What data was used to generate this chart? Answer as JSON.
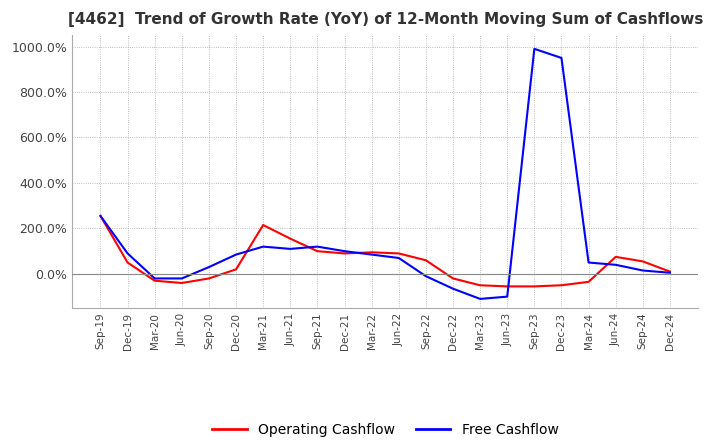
{
  "title": "[4462]  Trend of Growth Rate (YoY) of 12-Month Moving Sum of Cashflows",
  "title_fontsize": 11,
  "title_color": "#333333",
  "ylim_low": -150,
  "ylim_high": 1050,
  "yticks": [
    0,
    200,
    400,
    600,
    800,
    1000
  ],
  "ytick_labels": [
    "0.0%",
    "200.0%",
    "400.0%",
    "600.0%",
    "800.0%",
    "1000.0%"
  ],
  "background_color": "#ffffff",
  "grid_color": "#aaaaaa",
  "legend_labels": [
    "Operating Cashflow",
    "Free Cashflow"
  ],
  "op_color": "#ff0000",
  "free_color": "#0000ff",
  "x_labels": [
    "Sep-19",
    "Dec-19",
    "Mar-20",
    "Jun-20",
    "Sep-20",
    "Dec-20",
    "Mar-21",
    "Jun-21",
    "Sep-21",
    "Dec-21",
    "Mar-22",
    "Jun-22",
    "Sep-22",
    "Dec-22",
    "Mar-23",
    "Jun-23",
    "Sep-23",
    "Dec-23",
    "Mar-24",
    "Jun-24",
    "Sep-24",
    "Dec-24"
  ],
  "operating_cashflow": [
    255,
    50,
    -30,
    -40,
    -20,
    20,
    215,
    155,
    100,
    90,
    95,
    90,
    60,
    -20,
    -50,
    -55,
    -55,
    -50,
    -35,
    75,
    55,
    10
  ],
  "free_cashflow": [
    255,
    90,
    -20,
    -20,
    30,
    85,
    120,
    110,
    120,
    100,
    85,
    70,
    -10,
    -65,
    -110,
    -100,
    990,
    950,
    50,
    40,
    15,
    5
  ]
}
